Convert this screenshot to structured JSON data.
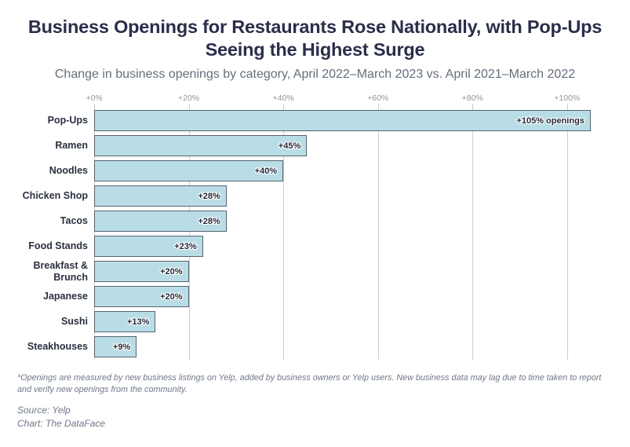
{
  "header": {
    "title": "Business Openings for Restaurants Rose Nationally, with Pop-Ups Seeing the Highest Surge",
    "subtitle": "Change in business openings by category, April 2022–March 2023 vs. April 2021–March 2022"
  },
  "chart_data": {
    "type": "bar",
    "orientation": "horizontal",
    "categories": [
      "Pop-Ups",
      "Ramen",
      "Noodles",
      "Chicken Shop",
      "Tacos",
      "Food Stands",
      "Breakfast & Brunch",
      "Japanese",
      "Sushi",
      "Steakhouses"
    ],
    "values": [
      105,
      45,
      40,
      28,
      28,
      23,
      20,
      20,
      13,
      9
    ],
    "value_labels": [
      "+105% openings",
      "+45%",
      "+40%",
      "+28%",
      "+28%",
      "+23%",
      "+20%",
      "+20%",
      "+13%",
      "+9%"
    ],
    "x_ticks": [
      "+0%",
      "+20%",
      "+40%",
      "+60%",
      "+80%",
      "+100%"
    ],
    "x_tick_values": [
      0,
      20,
      40,
      60,
      80,
      100
    ],
    "xlim": [
      0,
      107.5
    ],
    "grid": true,
    "legend": "none",
    "bar_fill": "#b9dde6",
    "bar_border": "#57646f"
  },
  "footnote": "*Openings are measured by new business listings on Yelp, added by business owners or Yelp users. New business data may lag due to time taken to report and verify new openings from the community.",
  "credits": {
    "source": "Source: Yelp",
    "chart": "Chart: The DataFace"
  }
}
